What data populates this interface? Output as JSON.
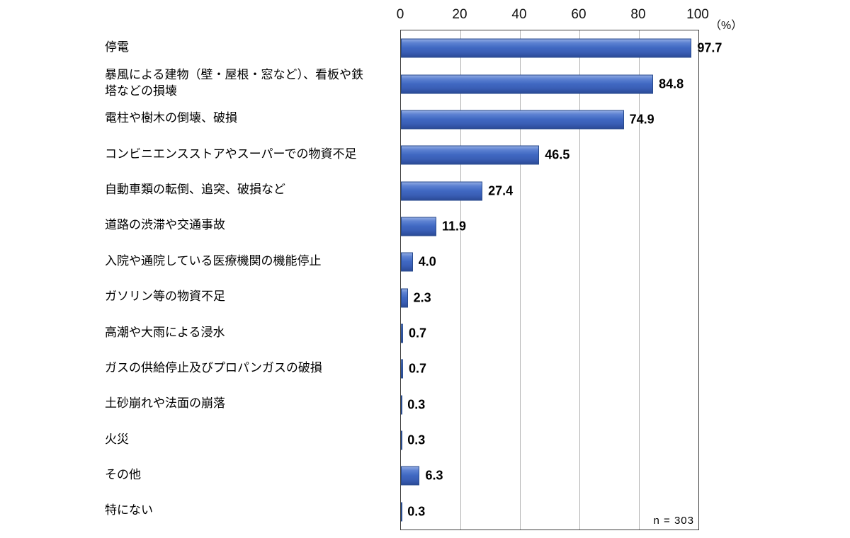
{
  "chart_data": {
    "type": "bar",
    "orientation": "horizontal",
    "title": "",
    "xlabel": "",
    "ylabel": "",
    "xlim": [
      0,
      100
    ],
    "ticks": [
      0,
      20,
      40,
      60,
      80,
      100
    ],
    "unit_label": "（%）",
    "grid": true,
    "legend": "none",
    "bar_color": "#4068c2",
    "categories": [
      "停電",
      "暴風による建物（壁・屋根・窓など）、看板や鉄塔などの損壊",
      "電柱や樹木の倒壊、破損",
      "コンビニエンスストアやスーパーでの物資不足",
      "自動車類の転倒、追突、破損など",
      "道路の渋滞や交通事故",
      "入院や通院している医療機関の機能停止",
      "ガソリン等の物資不足",
      "高潮や大雨による浸水",
      "ガスの供給停止及びプロパンガスの破損",
      "土砂崩れや法面の崩落",
      "火災",
      "その他",
      "特にない"
    ],
    "values": [
      97.7,
      84.8,
      74.9,
      46.5,
      27.4,
      11.9,
      4.0,
      2.3,
      0.7,
      0.7,
      0.3,
      0.3,
      6.3,
      0.3
    ],
    "value_labels": [
      "97.7",
      "84.8",
      "74.9",
      "46.5",
      "27.4",
      "11.9",
      "4.0",
      "2.3",
      "0.7",
      "0.7",
      "0.3",
      "0.3",
      "6.3",
      "0.3"
    ],
    "note": "n = 303"
  }
}
